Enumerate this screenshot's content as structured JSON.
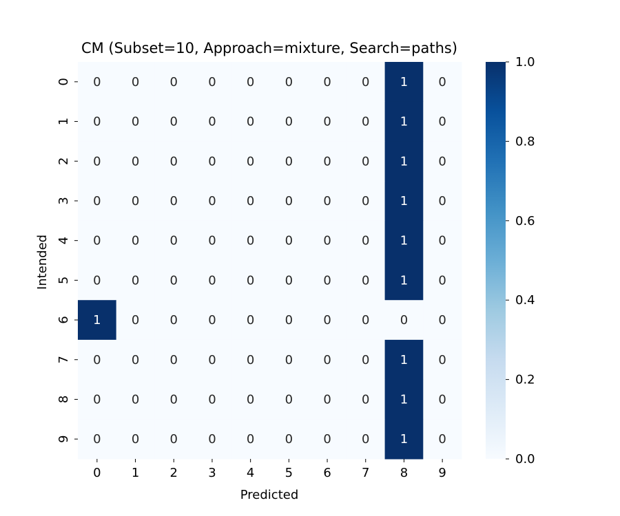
{
  "chart_data": {
    "type": "heatmap",
    "title": "CM (Subset=10, Approach=mixture, Search=paths)",
    "xlabel": "Predicted",
    "ylabel": "Intended",
    "x_categories": [
      "0",
      "1",
      "2",
      "3",
      "4",
      "5",
      "6",
      "7",
      "8",
      "9"
    ],
    "y_categories": [
      "0",
      "1",
      "2",
      "3",
      "4",
      "5",
      "6",
      "7",
      "8",
      "9"
    ],
    "values": [
      [
        0,
        0,
        0,
        0,
        0,
        0,
        0,
        0,
        1,
        0
      ],
      [
        0,
        0,
        0,
        0,
        0,
        0,
        0,
        0,
        1,
        0
      ],
      [
        0,
        0,
        0,
        0,
        0,
        0,
        0,
        0,
        1,
        0
      ],
      [
        0,
        0,
        0,
        0,
        0,
        0,
        0,
        0,
        1,
        0
      ],
      [
        0,
        0,
        0,
        0,
        0,
        0,
        0,
        0,
        1,
        0
      ],
      [
        0,
        0,
        0,
        0,
        0,
        0,
        0,
        0,
        1,
        0
      ],
      [
        1,
        0,
        0,
        0,
        0,
        0,
        0,
        0,
        0,
        0
      ],
      [
        0,
        0,
        0,
        0,
        0,
        0,
        0,
        0,
        1,
        0
      ],
      [
        0,
        0,
        0,
        0,
        0,
        0,
        0,
        0,
        1,
        0
      ],
      [
        0,
        0,
        0,
        0,
        0,
        0,
        0,
        0,
        1,
        0
      ]
    ],
    "colorbar": {
      "range": [
        0,
        1
      ],
      "ticks": [
        "0.0",
        "0.2",
        "0.4",
        "0.6",
        "0.8",
        "1.0"
      ],
      "colormap": "Blues",
      "low_color": "#f7fbff",
      "high_color": "#08306b"
    }
  }
}
